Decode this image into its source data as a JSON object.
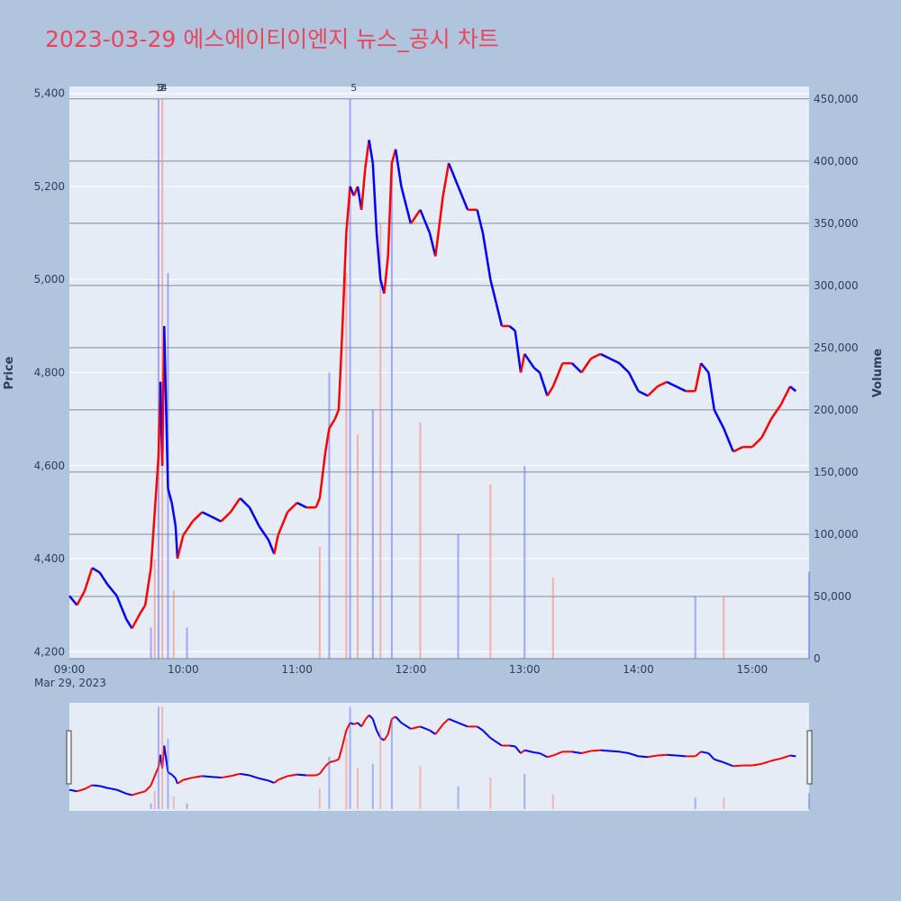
{
  "title": "2023-03-29 에스에이티이엔지 뉴스_공시 차트",
  "chart_data": {
    "type": "candlestick",
    "title": "2023-03-29 에스에이티이엔지 뉴스_공시 차트",
    "y_price_label": "Price",
    "y_volume_label": "Volume",
    "date_label": "Mar 29, 2023",
    "price_range": [
      4185,
      5415
    ],
    "volume_range": [
      0,
      460000
    ],
    "price_ticks": [
      4200,
      4400,
      4600,
      4800,
      5000,
      5200,
      5400
    ],
    "price_tick_labels": [
      "4,200",
      "4,400",
      "4,600",
      "4,800",
      "5,000",
      "5,200",
      "5,400"
    ],
    "volume_ticks": [
      0,
      50000,
      100000,
      150000,
      200000,
      250000,
      300000,
      350000,
      400000,
      450000
    ],
    "volume_tick_labels": [
      "0",
      "50,000",
      "100,000",
      "150,000",
      "200,000",
      "250,000",
      "300,000",
      "350,000",
      "400,000",
      "450,000"
    ],
    "time_range": [
      "09:00",
      "15:30"
    ],
    "time_ticks": [
      "09:00",
      "10:00",
      "11:00",
      "12:00",
      "13:00",
      "14:00",
      "15:00"
    ],
    "price_path": [
      [
        "09:00",
        4320
      ],
      [
        "09:04",
        4300
      ],
      [
        "09:08",
        4330
      ],
      [
        "09:12",
        4380
      ],
      [
        "09:16",
        4370
      ],
      [
        "09:20",
        4345
      ],
      [
        "09:25",
        4320
      ],
      [
        "09:30",
        4270
      ],
      [
        "09:33",
        4250
      ],
      [
        "09:37",
        4280
      ],
      [
        "09:40",
        4300
      ],
      [
        "09:43",
        4380
      ],
      [
        "09:45",
        4500
      ],
      [
        "09:47",
        4620
      ],
      [
        "09:48",
        4780
      ],
      [
        "09:49",
        4600
      ],
      [
        "09:50",
        4900
      ],
      [
        "09:52",
        4550
      ],
      [
        "09:54",
        4520
      ],
      [
        "09:56",
        4470
      ],
      [
        "09:57",
        4400
      ],
      [
        "10:00",
        4450
      ],
      [
        "10:05",
        4480
      ],
      [
        "10:10",
        4500
      ],
      [
        "10:15",
        4490
      ],
      [
        "10:20",
        4480
      ],
      [
        "10:25",
        4500
      ],
      [
        "10:30",
        4530
      ],
      [
        "10:35",
        4510
      ],
      [
        "10:40",
        4470
      ],
      [
        "10:45",
        4440
      ],
      [
        "10:48",
        4410
      ],
      [
        "10:50",
        4450
      ],
      [
        "10:55",
        4500
      ],
      [
        "11:00",
        4520
      ],
      [
        "11:05",
        4510
      ],
      [
        "11:10",
        4510
      ],
      [
        "11:12",
        4530
      ],
      [
        "11:15",
        4630
      ],
      [
        "11:17",
        4680
      ],
      [
        "11:20",
        4700
      ],
      [
        "11:22",
        4720
      ],
      [
        "11:24",
        4900
      ],
      [
        "11:26",
        5100
      ],
      [
        "11:28",
        5200
      ],
      [
        "11:30",
        5180
      ],
      [
        "11:32",
        5200
      ],
      [
        "11:34",
        5150
      ],
      [
        "11:36",
        5240
      ],
      [
        "11:38",
        5300
      ],
      [
        "11:40",
        5250
      ],
      [
        "11:42",
        5100
      ],
      [
        "11:44",
        5000
      ],
      [
        "11:46",
        4970
      ],
      [
        "11:48",
        5050
      ],
      [
        "11:50",
        5250
      ],
      [
        "11:52",
        5280
      ],
      [
        "11:55",
        5200
      ],
      [
        "12:00",
        5120
      ],
      [
        "12:05",
        5150
      ],
      [
        "12:10",
        5100
      ],
      [
        "12:13",
        5050
      ],
      [
        "12:17",
        5180
      ],
      [
        "12:20",
        5250
      ],
      [
        "12:25",
        5200
      ],
      [
        "12:30",
        5150
      ],
      [
        "12:35",
        5150
      ],
      [
        "12:38",
        5100
      ],
      [
        "12:42",
        5000
      ],
      [
        "12:45",
        4950
      ],
      [
        "12:48",
        4900
      ],
      [
        "12:52",
        4900
      ],
      [
        "12:55",
        4890
      ],
      [
        "12:58",
        4800
      ],
      [
        "13:00",
        4840
      ],
      [
        "13:05",
        4810
      ],
      [
        "13:08",
        4800
      ],
      [
        "13:12",
        4750
      ],
      [
        "13:15",
        4770
      ],
      [
        "13:20",
        4820
      ],
      [
        "13:25",
        4820
      ],
      [
        "13:30",
        4800
      ],
      [
        "13:35",
        4830
      ],
      [
        "13:40",
        4840
      ],
      [
        "13:45",
        4830
      ],
      [
        "13:50",
        4820
      ],
      [
        "13:55",
        4800
      ],
      [
        "14:00",
        4760
      ],
      [
        "14:05",
        4750
      ],
      [
        "14:10",
        4770
      ],
      [
        "14:15",
        4780
      ],
      [
        "14:20",
        4770
      ],
      [
        "14:25",
        4760
      ],
      [
        "14:30",
        4760
      ],
      [
        "14:33",
        4820
      ],
      [
        "14:37",
        4800
      ],
      [
        "14:40",
        4720
      ],
      [
        "14:45",
        4680
      ],
      [
        "14:50",
        4630
      ],
      [
        "14:55",
        4640
      ],
      [
        "15:00",
        4640
      ],
      [
        "15:05",
        4660
      ],
      [
        "15:10",
        4700
      ],
      [
        "15:15",
        4730
      ],
      [
        "15:20",
        4770
      ],
      [
        "15:23",
        4760
      ]
    ],
    "price_segment_colors": [
      "#ff0000",
      "#0000ff"
    ],
    "volume_bars": [
      [
        "09:43",
        25000
      ],
      [
        "09:45",
        80000
      ],
      [
        "09:47",
        450000
      ],
      [
        "09:49",
        450000
      ],
      [
        "09:52",
        310000
      ],
      [
        "09:55",
        55000
      ],
      [
        "10:02",
        25000
      ],
      [
        "11:12",
        90000
      ],
      [
        "11:17",
        230000
      ],
      [
        "11:26",
        310000
      ],
      [
        "11:28",
        450000
      ],
      [
        "11:32",
        180000
      ],
      [
        "11:40",
        200000
      ],
      [
        "11:44",
        350000
      ],
      [
        "11:50",
        400000
      ],
      [
        "12:05",
        190000
      ],
      [
        "12:25",
        100000
      ],
      [
        "12:42",
        140000
      ],
      [
        "13:00",
        155000
      ],
      [
        "13:15",
        65000
      ],
      [
        "14:30",
        50000
      ],
      [
        "14:45",
        50000
      ],
      [
        "15:30",
        70000
      ]
    ],
    "annotations": [
      "1",
      "2",
      "3",
      "4",
      "5"
    ]
  }
}
